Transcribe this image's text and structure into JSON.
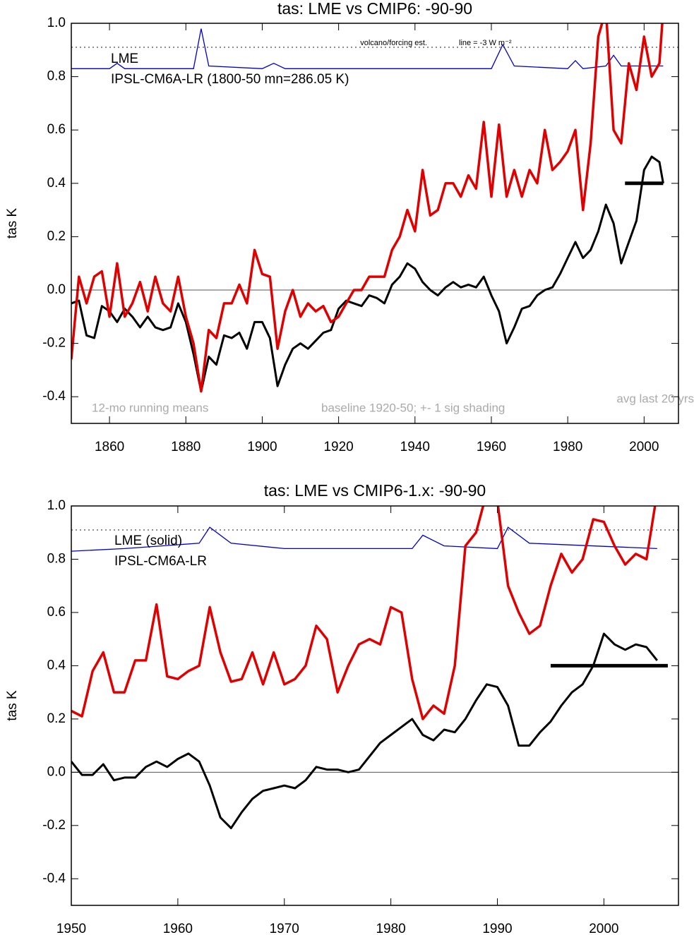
{
  "chart_data": [
    {
      "type": "line",
      "title": "tas: LME vs CMIP6: -90-90",
      "y_label": "tas K",
      "x": [
        1850,
        1852,
        1854,
        1856,
        1858,
        1860,
        1862,
        1864,
        1866,
        1868,
        1870,
        1872,
        1874,
        1876,
        1878,
        1880,
        1882,
        1884,
        1886,
        1888,
        1890,
        1892,
        1894,
        1896,
        1898,
        1900,
        1902,
        1904,
        1906,
        1908,
        1910,
        1912,
        1914,
        1916,
        1918,
        1920,
        1922,
        1924,
        1926,
        1928,
        1930,
        1932,
        1934,
        1936,
        1938,
        1940,
        1942,
        1944,
        1946,
        1948,
        1950,
        1952,
        1954,
        1956,
        1958,
        1960,
        1962,
        1964,
        1966,
        1968,
        1970,
        1972,
        1974,
        1976,
        1978,
        1980,
        1982,
        1984,
        1986,
        1988,
        1990,
        1992,
        1994,
        1996,
        1998,
        2000,
        2002,
        2004,
        2005
      ],
      "series": [
        {
          "name": "LME",
          "color": "#000000",
          "values": [
            -0.05,
            -0.04,
            -0.17,
            -0.18,
            -0.06,
            -0.08,
            -0.12,
            -0.07,
            -0.1,
            -0.14,
            -0.1,
            -0.14,
            -0.15,
            -0.14,
            -0.05,
            -0.12,
            -0.24,
            -0.38,
            -0.25,
            -0.28,
            -0.17,
            -0.18,
            -0.16,
            -0.22,
            -0.12,
            -0.12,
            -0.18,
            -0.36,
            -0.28,
            -0.22,
            -0.2,
            -0.22,
            -0.19,
            -0.16,
            -0.15,
            -0.07,
            -0.04,
            -0.05,
            -0.06,
            -0.02,
            -0.03,
            -0.05,
            0.02,
            0.05,
            0.1,
            0.08,
            0.03,
            0.0,
            -0.02,
            0.01,
            0.03,
            0.01,
            0.02,
            0.01,
            0.05,
            -0.02,
            -0.08,
            -0.2,
            -0.14,
            -0.07,
            -0.06,
            -0.02,
            0.0,
            0.01,
            0.06,
            0.12,
            0.18,
            0.12,
            0.15,
            0.22,
            0.32,
            0.25,
            0.1,
            0.18,
            0.26,
            0.45,
            0.5,
            0.48,
            0.4
          ]
        },
        {
          "name": "IPSL-CM6A-LR (1800-50 mn=286.05 K)",
          "color": "#e00000",
          "values": [
            -0.26,
            0.05,
            -0.05,
            0.05,
            0.07,
            -0.1,
            0.1,
            -0.1,
            -0.05,
            0.03,
            -0.08,
            0.05,
            -0.05,
            -0.08,
            0.05,
            -0.1,
            -0.2,
            -0.38,
            -0.15,
            -0.18,
            -0.05,
            -0.05,
            0.02,
            -0.05,
            0.15,
            0.06,
            0.05,
            -0.22,
            -0.08,
            0.0,
            -0.1,
            -0.05,
            -0.08,
            -0.06,
            -0.12,
            -0.1,
            -0.05,
            0.0,
            0.0,
            0.05,
            0.05,
            0.05,
            0.15,
            0.2,
            0.3,
            0.22,
            0.45,
            0.28,
            0.3,
            0.4,
            0.4,
            0.35,
            0.43,
            0.38,
            0.63,
            0.35,
            0.62,
            0.35,
            0.45,
            0.35,
            0.45,
            0.4,
            0.6,
            0.45,
            0.48,
            0.52,
            0.6,
            0.3,
            0.55,
            0.95,
            1.05,
            0.6,
            0.55,
            0.85,
            0.75,
            0.95,
            0.8,
            0.85,
            1.05
          ]
        }
      ],
      "forcing": {
        "color": "#0000cc",
        "x": [
          1850,
          1860,
          1862,
          1864,
          1882,
          1884,
          1886,
          1900,
          1903,
          1906,
          1960,
          1963,
          1966,
          1980,
          1982,
          1984,
          1990,
          1992,
          1994,
          2005
        ],
        "values": [
          0.83,
          0.83,
          0.85,
          0.83,
          0.83,
          0.98,
          0.84,
          0.83,
          0.85,
          0.83,
          0.83,
          0.92,
          0.84,
          0.83,
          0.86,
          0.83,
          0.84,
          0.88,
          0.84,
          0.84
        ]
      },
      "reference_line": 0.91,
      "avg_line": {
        "x": [
          1995,
          2005
        ],
        "value": 0.4
      },
      "annotations": [
        "volcano/forcing est.",
        "line = -3 W m⁻²",
        "12-mo running means",
        "baseline 1920-50; +- 1 sig shading",
        "avg last 20 yrs"
      ],
      "xlim": [
        1850,
        2009
      ],
      "xticks": [
        1860,
        1880,
        1900,
        1920,
        1940,
        1960,
        1980,
        2000
      ],
      "ylim": [
        -0.5,
        1.0
      ],
      "yticks": [
        {
          "value": 1,
          "label": "1.0"
        },
        0.8,
        0.6,
        0.4,
        0.2,
        {
          "value": 0,
          "label": "0.0"
        },
        -0.2,
        -0.4
      ]
    },
    {
      "type": "line",
      "title": "tas: LME vs CMIP6-1.x: -90-90",
      "y_label": "tas K",
      "x": [
        1950,
        1951,
        1952,
        1953,
        1954,
        1955,
        1956,
        1957,
        1958,
        1959,
        1960,
        1961,
        1962,
        1963,
        1964,
        1965,
        1966,
        1967,
        1968,
        1969,
        1970,
        1971,
        1972,
        1973,
        1974,
        1975,
        1976,
        1977,
        1978,
        1979,
        1980,
        1981,
        1982,
        1983,
        1984,
        1985,
        1986,
        1987,
        1988,
        1989,
        1990,
        1991,
        1992,
        1993,
        1994,
        1995,
        1996,
        1997,
        1998,
        1999,
        2000,
        2001,
        2002,
        2003,
        2004,
        2005
      ],
      "series": [
        {
          "name": "LME (solid)",
          "color": "#000000",
          "values": [
            0.04,
            -0.01,
            -0.01,
            0.03,
            -0.03,
            -0.02,
            -0.02,
            0.02,
            0.04,
            0.02,
            0.05,
            0.07,
            0.04,
            -0.05,
            -0.17,
            -0.21,
            -0.15,
            -0.1,
            -0.07,
            -0.06,
            -0.05,
            -0.06,
            -0.03,
            0.02,
            0.01,
            0.01,
            0.0,
            0.01,
            0.06,
            0.11,
            0.14,
            0.17,
            0.2,
            0.14,
            0.12,
            0.16,
            0.15,
            0.2,
            0.27,
            0.33,
            0.32,
            0.25,
            0.1,
            0.1,
            0.15,
            0.19,
            0.25,
            0.3,
            0.33,
            0.4,
            0.52,
            0.48,
            0.46,
            0.48,
            0.47,
            0.42
          ]
        },
        {
          "name": "IPSL-CM6A-LR",
          "color": "#e00000",
          "values": [
            0.23,
            0.21,
            0.38,
            0.45,
            0.3,
            0.3,
            0.42,
            0.42,
            0.63,
            0.36,
            0.35,
            0.38,
            0.4,
            0.62,
            0.45,
            0.34,
            0.35,
            0.45,
            0.33,
            0.45,
            0.33,
            0.35,
            0.4,
            0.55,
            0.5,
            0.3,
            0.4,
            0.48,
            0.5,
            0.48,
            0.62,
            0.6,
            0.35,
            0.2,
            0.25,
            0.22,
            0.4,
            0.85,
            0.9,
            1.05,
            1.02,
            0.7,
            0.6,
            0.52,
            0.55,
            0.7,
            0.82,
            0.75,
            0.8,
            0.95,
            0.94,
            0.85,
            0.78,
            0.82,
            0.8,
            1.05
          ]
        }
      ],
      "forcing": {
        "color": "#0000cc",
        "x": [
          1950,
          1955,
          1962,
          1963,
          1965,
          1970,
          1982,
          1983,
          1985,
          1990,
          1991,
          1993,
          2005
        ],
        "values": [
          0.83,
          0.84,
          0.86,
          0.92,
          0.86,
          0.84,
          0.84,
          0.89,
          0.85,
          0.84,
          0.92,
          0.86,
          0.84
        ]
      },
      "reference_line": 0.91,
      "avg_line": {
        "x": [
          1995,
          2006
        ],
        "value": 0.4
      },
      "xlim": [
        1950,
        2007
      ],
      "xticks": [
        1950,
        1960,
        1970,
        1980,
        1990,
        2000
      ],
      "ylim": [
        -0.5,
        1.0
      ],
      "yticks": [
        {
          "value": 1,
          "label": "1.0"
        },
        0.8,
        0.6,
        0.4,
        0.2,
        {
          "value": 0,
          "label": "0.0"
        },
        -0.2,
        -0.4
      ]
    }
  ]
}
